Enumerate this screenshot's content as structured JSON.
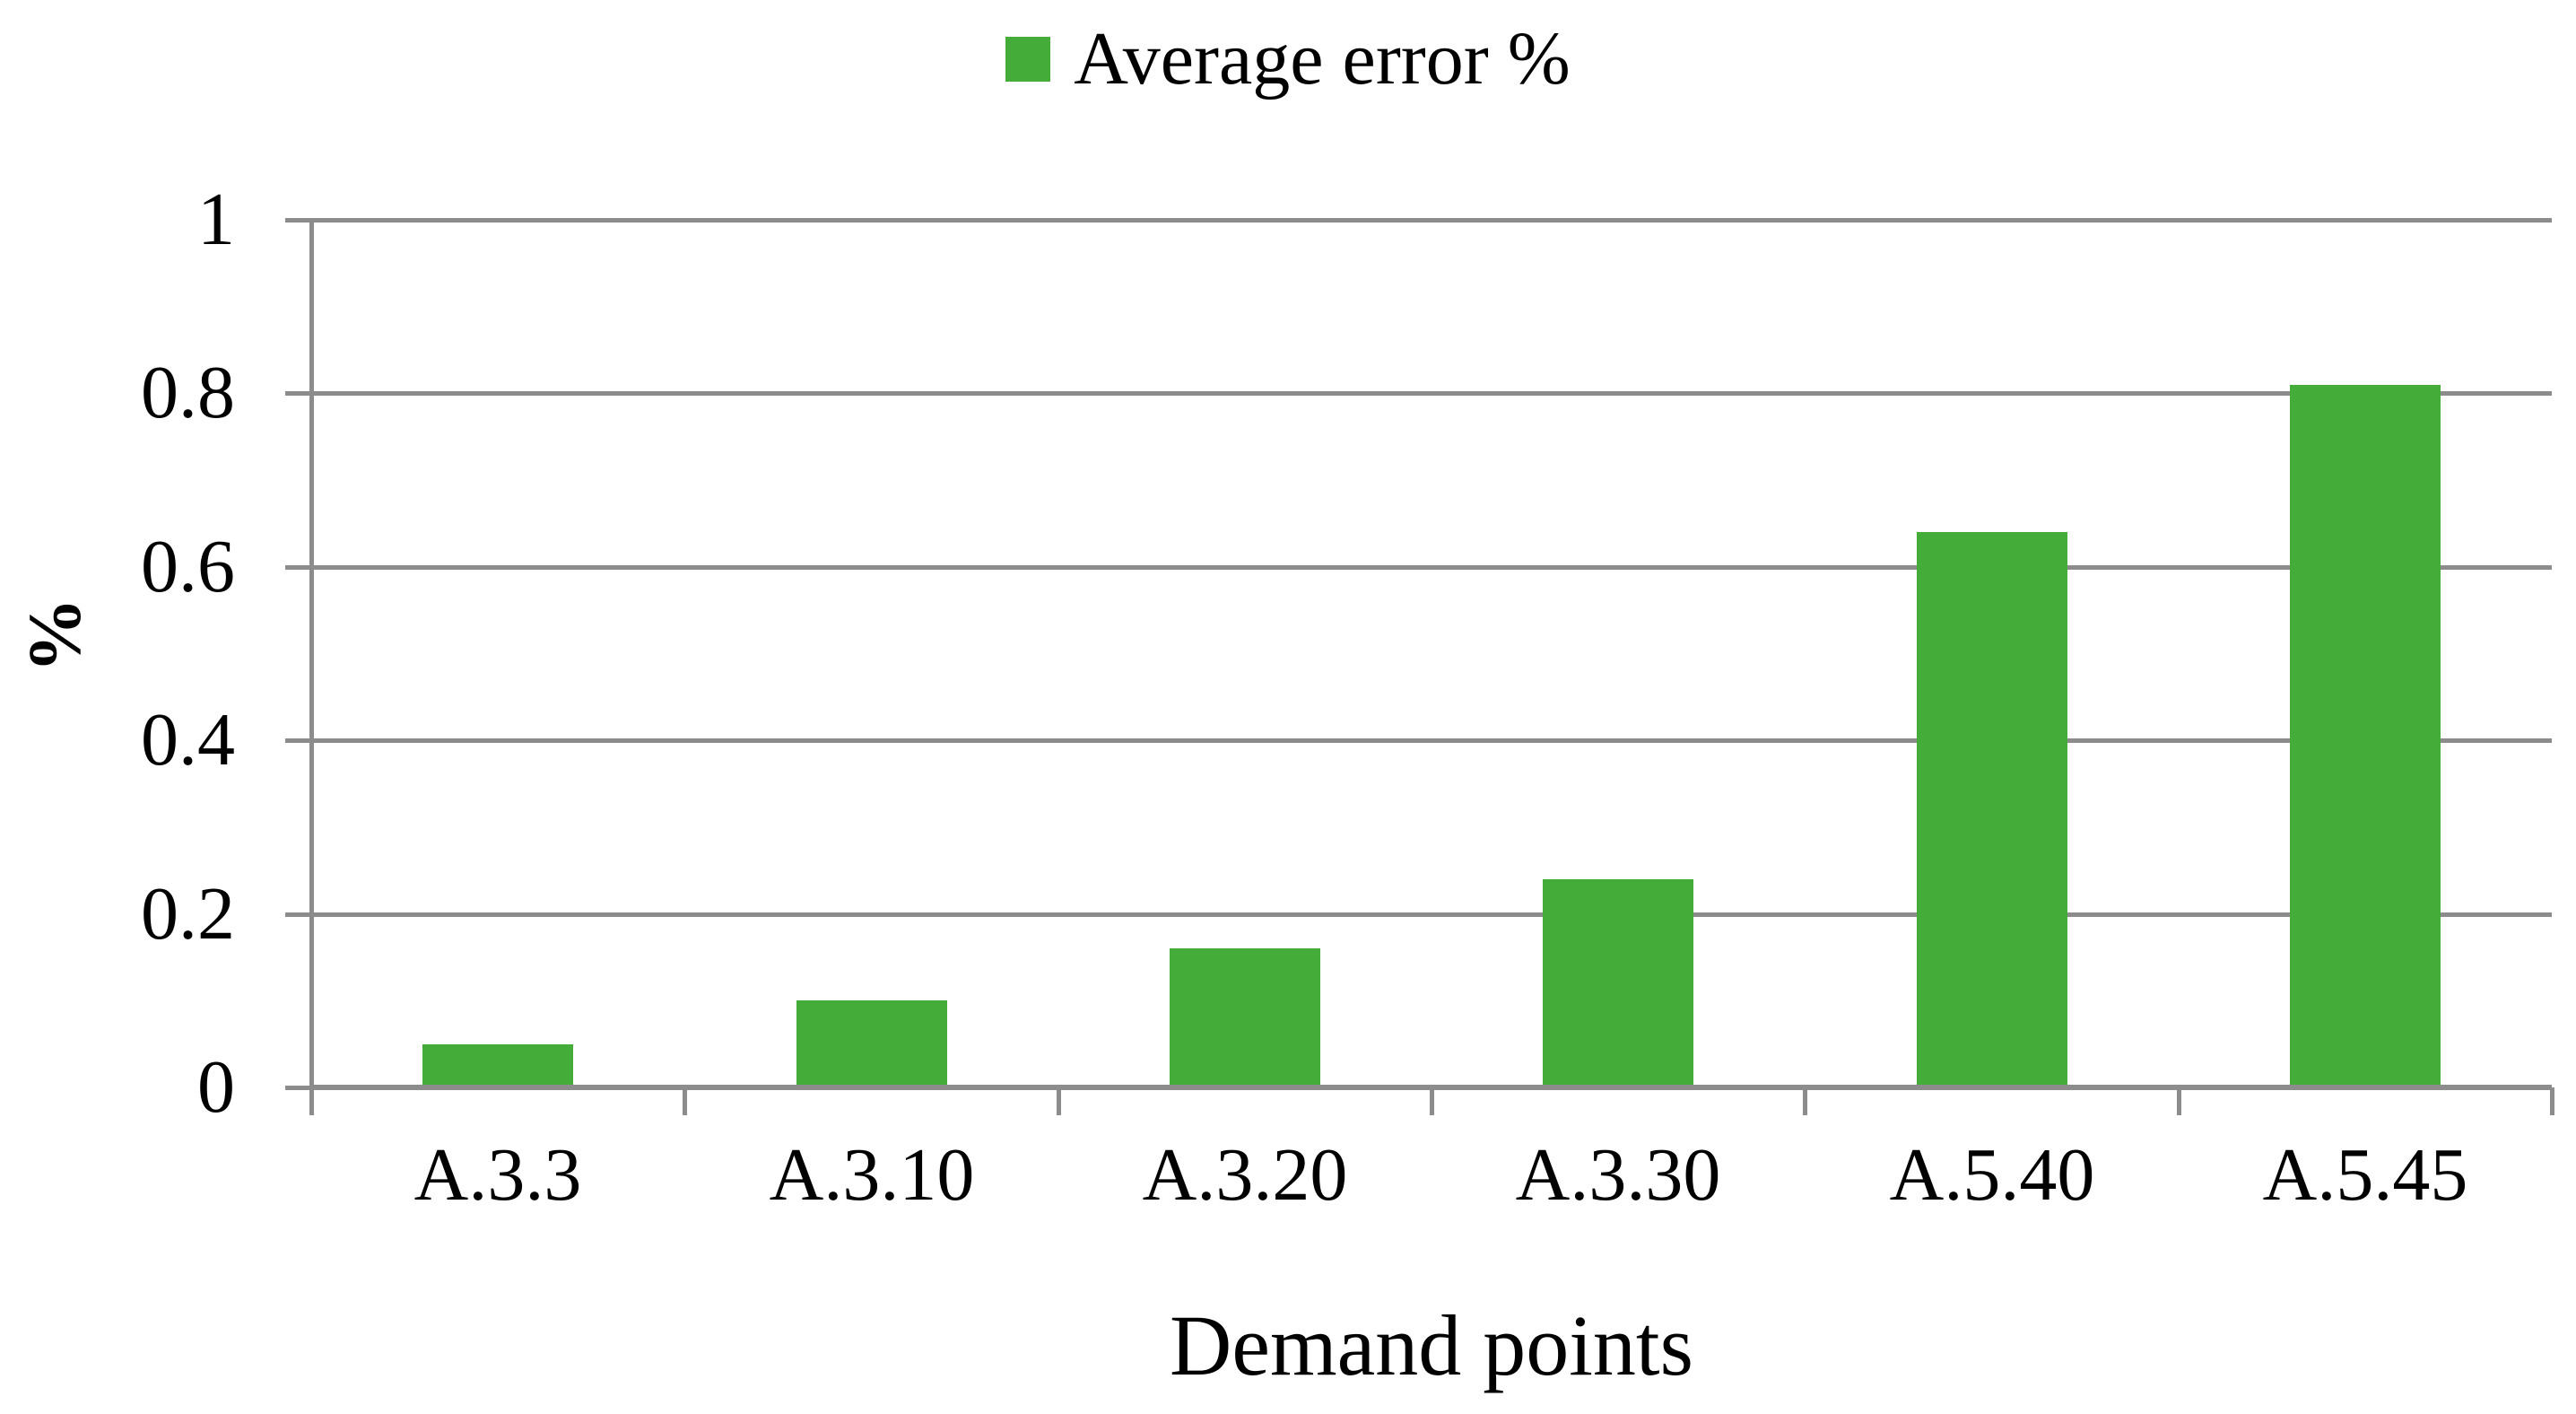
{
  "chart_data": {
    "type": "bar",
    "title": "",
    "legend": {
      "label": "Average error %",
      "position": "top-center"
    },
    "categories": [
      "A.3.3",
      "A.3.10",
      "A.3.20",
      "A.3.30",
      "A.5.40",
      "A.5.45"
    ],
    "series": [
      {
        "name": "Average error %",
        "color": "#44AD3A",
        "values": [
          0.05,
          0.1,
          0.16,
          0.24,
          0.64,
          0.81
        ]
      }
    ],
    "xlabel": "Demand points",
    "ylabel": "%",
    "ylim": [
      0,
      1
    ],
    "yticks": [
      {
        "value": 0,
        "label": "0"
      },
      {
        "value": 0.2,
        "label": "0.2"
      },
      {
        "value": 0.4,
        "label": "0.4"
      },
      {
        "value": 0.6,
        "label": "0.6"
      },
      {
        "value": 0.8,
        "label": "0.8"
      },
      {
        "value": 1,
        "label": "1"
      }
    ],
    "grid": true,
    "colors": {
      "gridline": "#8C8C8C",
      "axis": "#8C8C8C",
      "text": "#000000",
      "background": "#FFFFFF"
    }
  }
}
